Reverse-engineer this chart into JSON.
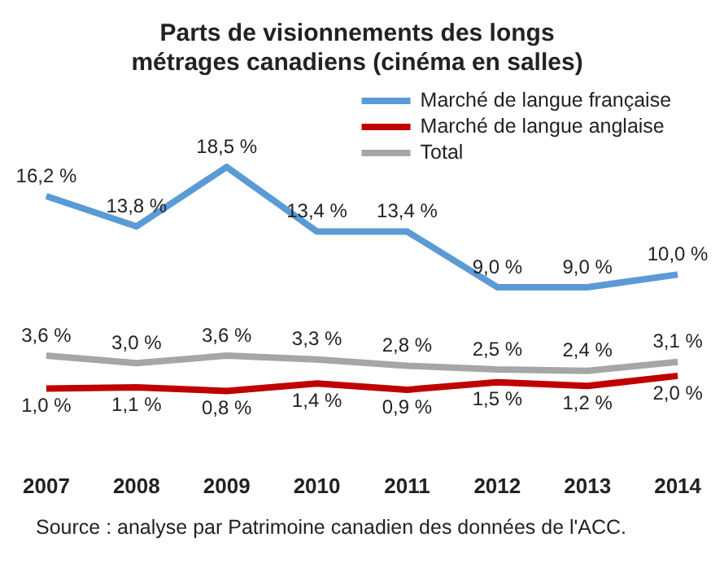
{
  "chart_data": {
    "type": "line",
    "title": "Parts de visionnements des longs métrages canadiens (cinéma en salles)",
    "categories": [
      "2007",
      "2008",
      "2009",
      "2010",
      "2011",
      "2012",
      "2013",
      "2014"
    ],
    "series": [
      {
        "name": "Marché de langue française",
        "color": "#5b9bd5",
        "values": [
          16.2,
          13.8,
          18.5,
          13.4,
          13.4,
          9.0,
          9.0,
          10.0
        ],
        "value_labels": [
          "16,2 %",
          "13,8 %",
          "18,5 %",
          "13,4 %",
          "13,4 %",
          "9,0 %",
          "9,0 %",
          "10,0 %"
        ]
      },
      {
        "name": "Marché de langue anglaise",
        "color": "#c00000",
        "values": [
          1.0,
          1.1,
          0.8,
          1.4,
          0.9,
          1.5,
          1.2,
          2.0
        ],
        "value_labels": [
          "1,0 %",
          "1,1 %",
          "0,8 %",
          "1,4 %",
          "0,9 %",
          "1,5 %",
          "1,2 %",
          "2,0 %"
        ]
      },
      {
        "name": "Total",
        "color": "#a6a6a6",
        "values": [
          3.6,
          3.0,
          3.6,
          3.3,
          2.8,
          2.5,
          2.4,
          3.1
        ],
        "value_labels": [
          "3,6 %",
          "3,0 %",
          "3,6 %",
          "3,3 %",
          "2,8 %",
          "2,5 %",
          "2,4 %",
          "3,1 %"
        ]
      }
    ],
    "annotations": [
      "Source : analyse par Patrimoine canadien des données de l'ACC."
    ],
    "legend": "top right",
    "grid": false,
    "marker": "none",
    "line_style": "solid",
    "tick_labels": "x"
  }
}
